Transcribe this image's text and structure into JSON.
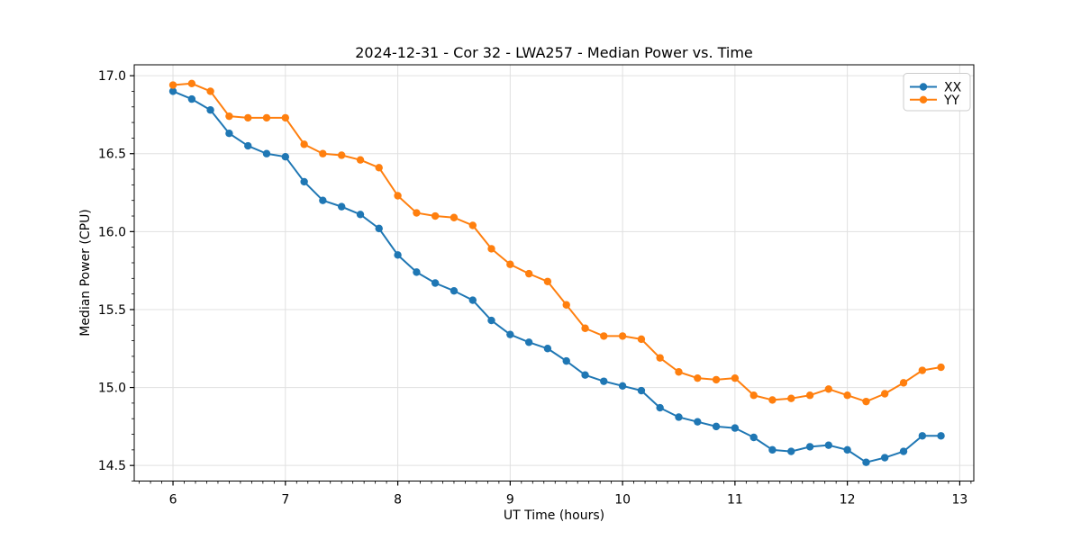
{
  "chart_data": {
    "type": "line",
    "title": "2024-12-31 - Cor 32 - LWA257 - Median Power vs. Time",
    "xlabel": "UT Time (hours)",
    "ylabel": "Median Power (CPU)",
    "xlim": [
      5.655,
      13.125
    ],
    "ylim": [
      14.4,
      17.07
    ],
    "x_ticks": [
      6,
      7,
      8,
      9,
      10,
      11,
      12,
      13
    ],
    "y_ticks": [
      14.5,
      15.0,
      15.5,
      16.0,
      16.5,
      17.0
    ],
    "minor_tick_step": 0.1,
    "grid": true,
    "grid_color": "#e0e0e0",
    "spine_color": "#000000",
    "legend_position": "top-right",
    "x": [
      6.0,
      6.167,
      6.333,
      6.5,
      6.667,
      6.833,
      7.0,
      7.167,
      7.333,
      7.5,
      7.667,
      7.833,
      8.0,
      8.167,
      8.333,
      8.5,
      8.667,
      8.833,
      9.0,
      9.167,
      9.333,
      9.5,
      9.667,
      9.833,
      10.0,
      10.167,
      10.333,
      10.5,
      10.667,
      10.833,
      11.0,
      11.167,
      11.333,
      11.5,
      11.667,
      11.833,
      12.0,
      12.167,
      12.333,
      12.5,
      12.667,
      12.833
    ],
    "series": [
      {
        "name": "XX",
        "color": "#1f77b4",
        "values": [
          16.9,
          16.85,
          16.78,
          16.63,
          16.55,
          16.5,
          16.48,
          16.32,
          16.2,
          16.16,
          16.11,
          16.02,
          15.85,
          15.74,
          15.67,
          15.62,
          15.56,
          15.43,
          15.34,
          15.29,
          15.25,
          15.17,
          15.08,
          15.04,
          15.01,
          14.98,
          14.87,
          14.81,
          14.78,
          14.75,
          14.74,
          14.68,
          14.6,
          14.59,
          14.62,
          14.63,
          14.6,
          14.52,
          14.55,
          14.59,
          14.69,
          14.69
        ]
      },
      {
        "name": "YY",
        "color": "#ff7f0e",
        "values": [
          16.94,
          16.95,
          16.9,
          16.74,
          16.73,
          16.73,
          16.73,
          16.56,
          16.5,
          16.49,
          16.46,
          16.41,
          16.23,
          16.12,
          16.1,
          16.09,
          16.04,
          15.89,
          15.79,
          15.73,
          15.68,
          15.53,
          15.38,
          15.33,
          15.33,
          15.31,
          15.19,
          15.1,
          15.06,
          15.05,
          15.06,
          14.95,
          14.92,
          14.93,
          14.95,
          14.99,
          14.95,
          14.91,
          14.96,
          15.03,
          15.11,
          15.13
        ]
      }
    ]
  }
}
